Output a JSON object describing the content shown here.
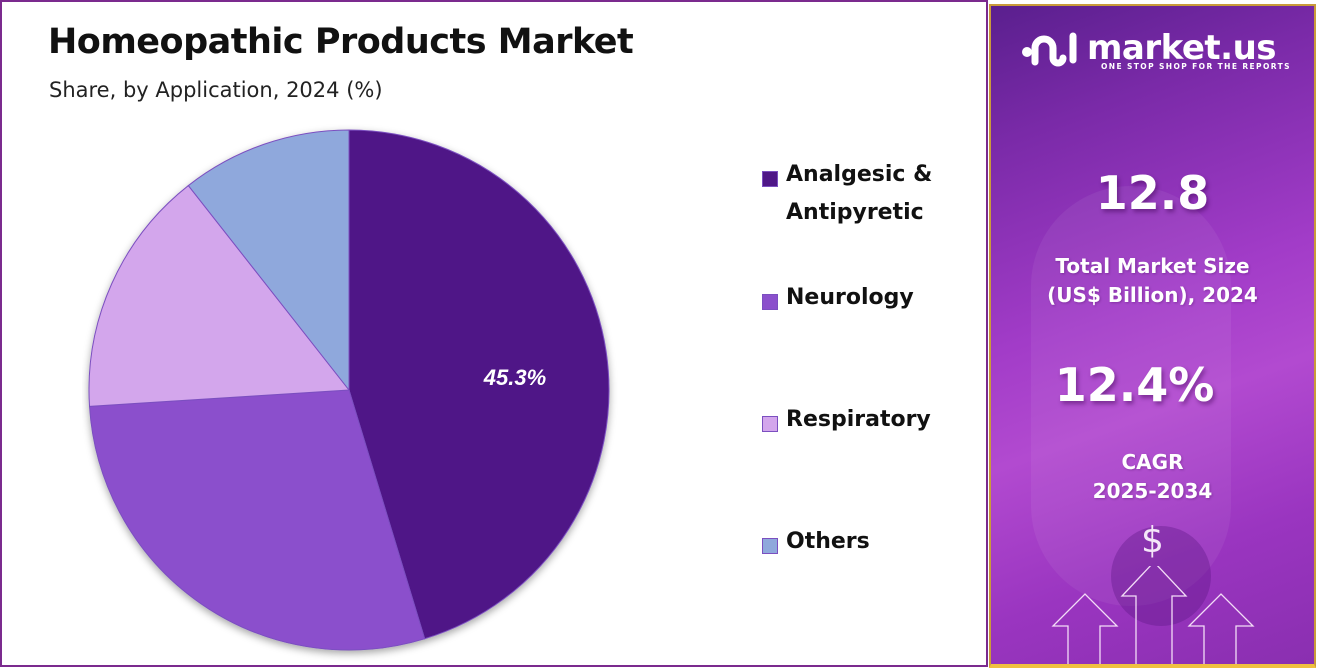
{
  "header": {
    "title": "Homeopathic Products Market",
    "subtitle": "Share, by Application, 2024 (%)"
  },
  "chart_data": {
    "type": "pie",
    "title": "Homeopathic Products Market",
    "subtitle": "Share, by Application, 2024 (%)",
    "categories": [
      "Analgesic & Antipyretic",
      "Neurology",
      "Respiratory",
      "Others"
    ],
    "values": [
      45.3,
      28.7,
      15.4,
      10.6
    ],
    "colors": [
      "#4f1787",
      "#8b50cc",
      "#d3a6ec",
      "#8fa8dc"
    ],
    "data_labels": [
      {
        "category": "Analgesic & Antipyretic",
        "label": "45.3%"
      }
    ],
    "start_angle_deg": 0,
    "direction": "clockwise",
    "legend_position": "right"
  },
  "legend": {
    "items": [
      {
        "label_line1": "Analgesic &",
        "label_line2": "Antipyretic",
        "color": "#4f1787"
      },
      {
        "label_line1": "Neurology",
        "color": "#8b50cc"
      },
      {
        "label_line1": "Respiratory",
        "color": "#d3a6ec"
      },
      {
        "label_line1": "Others",
        "color": "#8fa8dc"
      }
    ]
  },
  "pie_label": "45.3%",
  "sidebar": {
    "brand_name": "market.us",
    "brand_tagline": "ONE STOP SHOP FOR THE REPORTS",
    "market_size_value": "12.8",
    "market_size_label_line1": "Total Market Size",
    "market_size_label_line2": "(US$ Billion), 2024",
    "cagr_value": "12.4%",
    "cagr_label_line1": "CAGR",
    "cagr_label_line2": "2025-2034",
    "currency_symbol": "$"
  }
}
